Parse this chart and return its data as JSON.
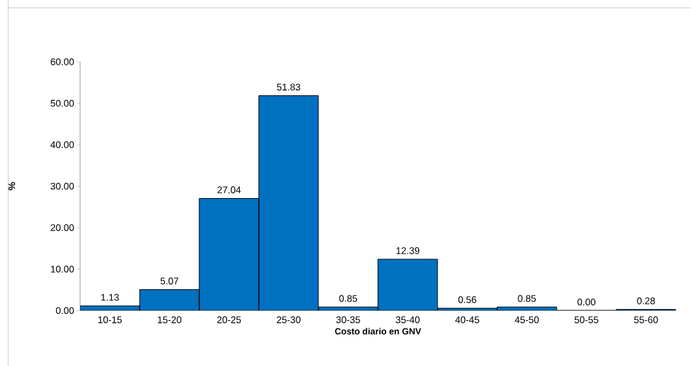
{
  "chart_data": {
    "type": "bar",
    "xlabel": "Costo diario en GNV",
    "ylabel": "%",
    "categories": [
      "10-15",
      "15-20",
      "20-25",
      "25-30",
      "30-35",
      "35-40",
      "40-45",
      "45-50",
      "50-55",
      "55-60"
    ],
    "values": [
      1.13,
      5.07,
      27.04,
      51.83,
      0.85,
      12.39,
      0.56,
      0.85,
      0.0,
      0.28
    ],
    "value_labels": [
      "1.13",
      "5.07",
      "27.04",
      "51.83",
      "0.85",
      "12.39",
      "0.56",
      "0.85",
      "0.00",
      "0.28"
    ],
    "color": "#0070c0",
    "ylim": [
      0,
      60
    ],
    "yticks": [
      {
        "value": 0,
        "label": "0.00"
      },
      {
        "value": 10,
        "label": "10.00"
      },
      {
        "value": 20,
        "label": "20.00"
      },
      {
        "value": 30,
        "label": "30.00"
      },
      {
        "value": 40,
        "label": "40.00"
      },
      {
        "value": 50,
        "label": "50.00"
      },
      {
        "value": 60,
        "label": "60.00"
      }
    ],
    "data_labels": false
  }
}
